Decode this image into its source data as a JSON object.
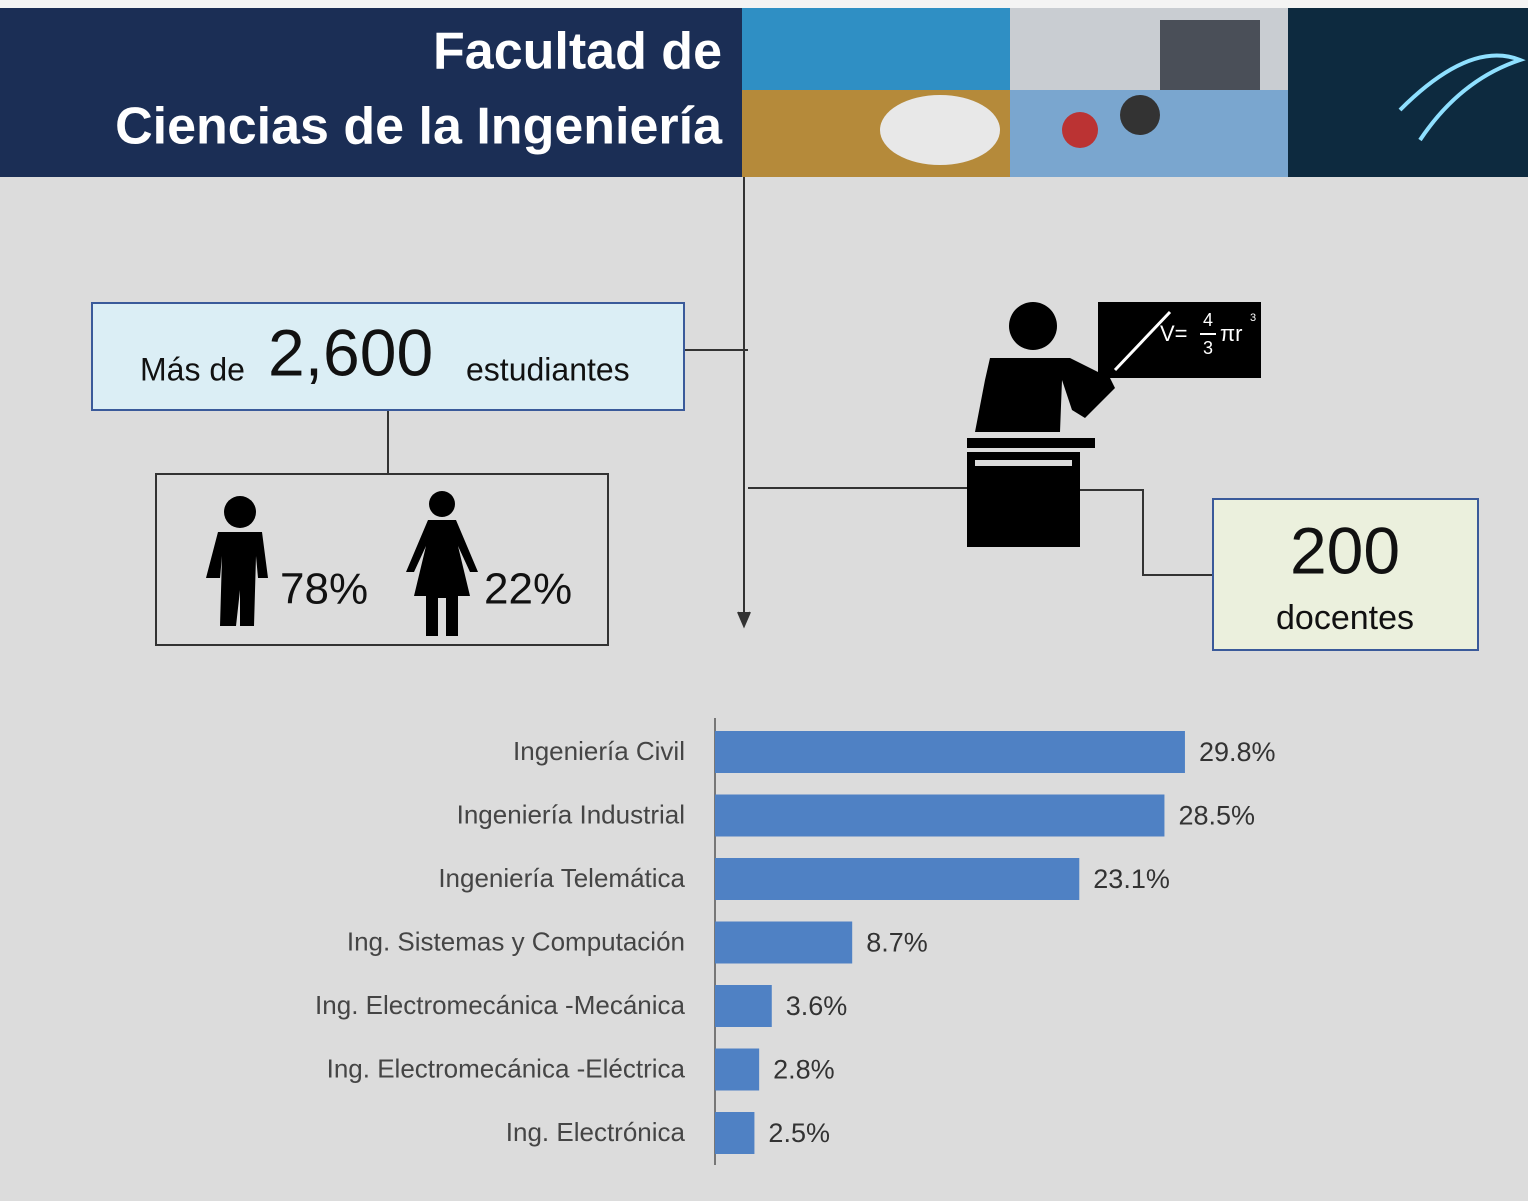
{
  "header": {
    "title": [
      "Facultad de",
      "Ciencias de la Ingeniería"
    ]
  },
  "students": {
    "prefix": "Más de",
    "count": "2,600",
    "suffix": "estudiantes"
  },
  "gender": {
    "male": "78%",
    "female": "22%"
  },
  "teachers": {
    "count": "200",
    "label": "docentes",
    "formula": {
      "lhs": "V=",
      "num": "4",
      "den": "3",
      "rest": "πr",
      "exp": "3"
    }
  },
  "chart_data": {
    "type": "bar",
    "orientation": "horizontal",
    "color": "#4f81c4",
    "categories": [
      "Ingeniería Civil",
      "Ingeniería Industrial",
      "Ingeniería Telemática",
      "Ing. Sistemas y Computación",
      "Ing. Electromecánica -Mecánica",
      "Ing. Electromecánica -Eléctrica",
      "Ing. Electrónica"
    ],
    "values": [
      29.8,
      28.5,
      23.1,
      8.7,
      3.6,
      2.8,
      2.5
    ],
    "value_labels": [
      "29.8%",
      "28.5%",
      "23.1%",
      "8.7%",
      "3.6%",
      "2.8%",
      "2.5%"
    ]
  }
}
